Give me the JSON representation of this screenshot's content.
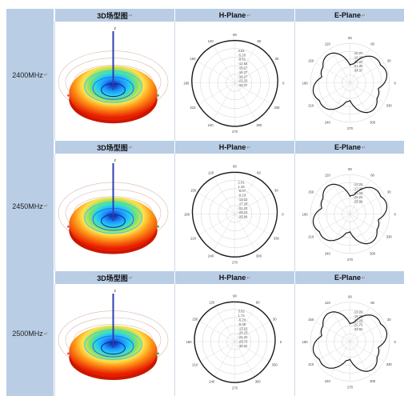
{
  "table": {
    "headers": [
      "3D场型图",
      "H-Plane",
      "E-Plane"
    ],
    "header_mark": "↵",
    "rows": [
      {
        "frequency": "2400MHz",
        "angles": [
          "90",
          "60",
          "30",
          "0",
          "330",
          "300",
          "270",
          "240",
          "210",
          "180",
          "150",
          "120"
        ],
        "h_scale": [
          "3.81",
          "-5.20",
          "-9.51",
          "-12.63",
          "-15.27",
          "-16.27",
          "-18.27",
          "-21.33",
          "-34.37"
        ],
        "e_scale": [
          "-15.27",
          "-16.27",
          "-18.27",
          "-21.33",
          "-34.37"
        ]
      },
      {
        "frequency": "2450MHz",
        "angles": [
          "90",
          "60",
          "30",
          "0",
          "330",
          "300",
          "270",
          "240",
          "210",
          "180",
          "150",
          "120"
        ],
        "h_scale": [
          "2.01",
          "1.46",
          "-6.07",
          "-9.23",
          "-13.23",
          "-17.28",
          "-21.23",
          "-25.23",
          "-25.99"
        ],
        "e_scale": [
          "-13.23",
          "-17.28",
          "-21.23",
          "-25.23",
          "-25.99"
        ]
      },
      {
        "frequency": "2500MHz",
        "angles": [
          "90",
          "60",
          "30",
          "0",
          "330",
          "300",
          "270",
          "240",
          "210",
          "180",
          "150",
          "120"
        ],
        "h_scale": [
          "3.02",
          "1.72",
          "-5.23",
          "-9.08",
          "-13.23",
          "-18.23",
          "-21.23",
          "-25.73",
          "-32.02"
        ],
        "e_scale": [
          "-13.23",
          "-18.23",
          "-21.23",
          "-25.73",
          "-32.02"
        ]
      }
    ]
  },
  "colors": {
    "header_bg": "#b9cde5",
    "row_label_bg": "#b9cde5",
    "pattern_hot": "#ff2a00",
    "pattern_cool": "#1e90ff",
    "pattern_line": "#1a1a1a"
  }
}
